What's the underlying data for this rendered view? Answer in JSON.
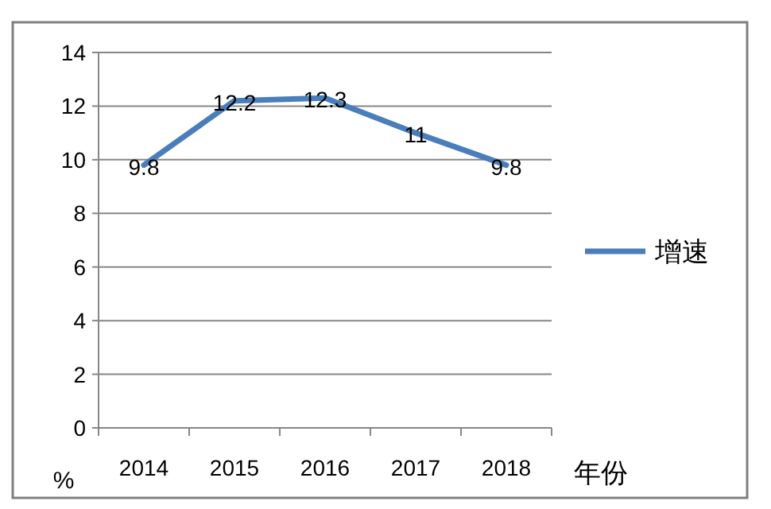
{
  "chart_data": {
    "type": "line",
    "xlabel": "年份",
    "ylabel": "%",
    "categories": [
      "2014",
      "2015",
      "2016",
      "2017",
      "2018"
    ],
    "series": [
      {
        "name": "增速",
        "color": "#4a7ebb",
        "values": [
          9.8,
          12.2,
          12.3,
          11,
          9.8
        ]
      }
    ],
    "ylim": [
      0,
      14
    ],
    "yticks": [
      0,
      2,
      4,
      6,
      8,
      10,
      12,
      14
    ],
    "grid": "y",
    "legend": "right",
    "data_labels": true
  }
}
